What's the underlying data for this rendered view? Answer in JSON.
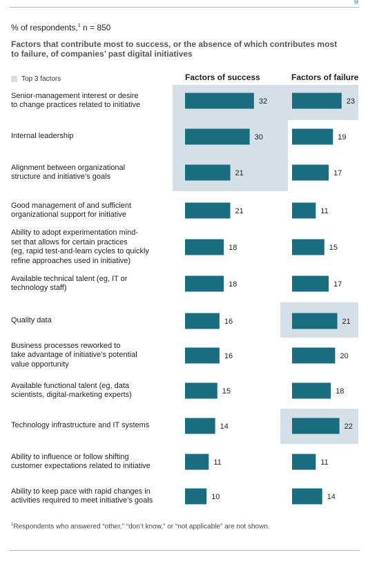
{
  "header": {
    "corner_mark": "g"
  },
  "respondents_note": {
    "prefix": "% of respondents,",
    "marker": "1",
    "suffix": " n = 850"
  },
  "chart_data": {
    "type": "bar",
    "title": "Factors that contribute most to success, or the absence of which contributes most to failure, of companies’ past digital initiatives",
    "legend": {
      "label": "Top 3 factors",
      "color": "#d5dfe7"
    },
    "bar_color": "#1a6c7f",
    "highlight_color": "#d5dfe7",
    "xlim": [
      0,
      35
    ],
    "categories": [
      "Senior-management interest or desire to change practices related to initiative",
      "Internal leadership",
      "Alignment between organizational structure and initiative’s goals",
      "Good management of and sufficient organizational support for initiative",
      "Ability to adopt experimentation mind-set that allows for certain practices (eg, rapid test-and-learn cycles to quickly refine approaches used in initiative)",
      "Available technical talent (eg, IT or technology staff)",
      "Quality data",
      "Business processes reworked to take advantage of initiative’s potential value opportunity",
      "Available functional talent (eg, data scientists, digital-marketing experts)",
      "Technology infrastructure and IT systems",
      "Ability to influence or follow shifting customer expectations related to initiative",
      "Ability to keep pace with rapid changes in activities required to meet initiative’s goals"
    ],
    "series": [
      {
        "name": "Factors of success",
        "values": [
          32,
          30,
          21,
          21,
          18,
          18,
          16,
          16,
          15,
          14,
          11,
          10
        ],
        "top3": [
          0,
          1,
          2
        ]
      },
      {
        "name": "Factors of failure",
        "values": [
          23,
          19,
          17,
          11,
          15,
          17,
          21,
          20,
          18,
          22,
          11,
          14
        ],
        "top3": [
          0,
          6,
          9
        ]
      }
    ]
  },
  "labels": [
    {
      "lines": [
        "Senior-management interest or desire",
        "to change practices related to initiative"
      ]
    },
    {
      "lines": [
        "Internal leadership"
      ]
    },
    {
      "lines": [
        "Alignment between organizational",
        "structure and initiative’s goals"
      ]
    },
    {
      "lines": [
        "Good management of and sufficient",
        "organizational support for initiative"
      ]
    },
    {
      "lines": [
        "Ability to adopt experimentation mind-",
        "set that allows for certain practices",
        "(eg, rapid test-and-learn cycles to quickly",
        "refine approaches used in initiative)"
      ]
    },
    {
      "lines": [
        "Available technical talent (eg, IT or",
        "technology staff)"
      ]
    },
    {
      "lines": [
        "Quality data"
      ]
    },
    {
      "lines": [
        "Business processes reworked to",
        "take advantage of initiative’s potential",
        "value opportunity"
      ]
    },
    {
      "lines": [
        "Available functional talent (eg, data",
        "scientists, digital-marketing experts)"
      ]
    },
    {
      "lines": [
        "Technology infrastructure and IT systems"
      ]
    },
    {
      "lines": [
        "Ability to influence or follow shifting",
        "customer expectations related to initiative"
      ]
    },
    {
      "lines": [
        "Ability to keep pace with rapid changes in",
        "activities required to meet initiative’s goals"
      ]
    }
  ],
  "footnote": {
    "marker": "1",
    "text": "Respondents who answered “other,” “don’t know,” or “not applicable” are not shown."
  }
}
